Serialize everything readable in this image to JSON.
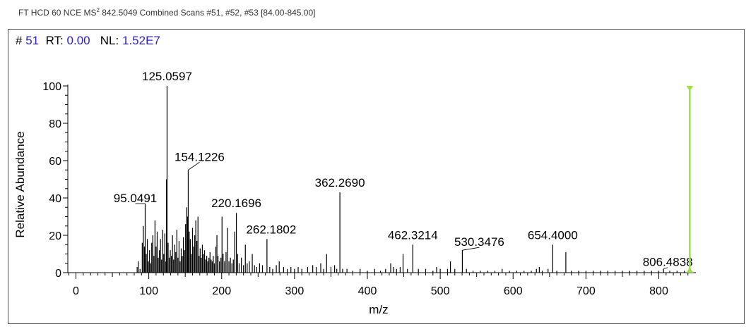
{
  "header": {
    "prefix": "FT HCD 60 NCE MS",
    "superscript": "2",
    "suffix": " 842.5049 Combined Scans #51, #52, #53 [84.00-845.00]"
  },
  "scan": {
    "scan_label": "#",
    "scan_value": "51",
    "rt_label": "RT:",
    "rt_value": "0.00",
    "nl_label": "NL:",
    "nl_value": "1.52E7"
  },
  "colors": {
    "peaks": "#000000",
    "precursor_marker": "#9be33c",
    "value_text": "#2b20d6"
  },
  "chart_data": {
    "type": "bar",
    "xlabel": "m/z",
    "ylabel": "Relative Abundance",
    "xlim": [
      -10,
      850
    ],
    "ylim": [
      0,
      100
    ],
    "x_ticks": [
      0,
      100,
      200,
      300,
      400,
      500,
      600,
      700,
      800
    ],
    "y_ticks": [
      0,
      20,
      40,
      60,
      80,
      100
    ],
    "precursor_marker": {
      "x": 842.5049,
      "y": 100
    },
    "peaks": [
      [
        84,
        3
      ],
      [
        85.5,
        6
      ],
      [
        88,
        2
      ],
      [
        91,
        16
      ],
      [
        92.5,
        25
      ],
      [
        94,
        14
      ],
      [
        95.0491,
        37
      ],
      [
        96.5,
        10
      ],
      [
        98,
        18
      ],
      [
        99.5,
        6
      ],
      [
        101,
        12
      ],
      [
        102.5,
        5
      ],
      [
        104,
        16
      ],
      [
        105.5,
        20
      ],
      [
        107,
        9
      ],
      [
        108.5,
        28
      ],
      [
        110,
        14
      ],
      [
        111.5,
        22
      ],
      [
        113,
        8
      ],
      [
        114.5,
        12
      ],
      [
        116,
        18
      ],
      [
        117.5,
        7
      ],
      [
        119,
        23
      ],
      [
        120.5,
        10
      ],
      [
        122,
        21
      ],
      [
        123.5,
        6
      ],
      [
        124.2,
        50
      ],
      [
        125.0597,
        100
      ],
      [
        126.5,
        16
      ],
      [
        128,
        8
      ],
      [
        129.5,
        12
      ],
      [
        131,
        9
      ],
      [
        132.5,
        20
      ],
      [
        134,
        7
      ],
      [
        135.5,
        15
      ],
      [
        137,
        11
      ],
      [
        138.5,
        23
      ],
      [
        140,
        8
      ],
      [
        141.5,
        17
      ],
      [
        143,
        6
      ],
      [
        144.5,
        13
      ],
      [
        146,
        9
      ],
      [
        147.5,
        19
      ],
      [
        149,
        12
      ],
      [
        150.5,
        26
      ],
      [
        152,
        35
      ],
      [
        153.2,
        30
      ],
      [
        154.1226,
        55
      ],
      [
        155.5,
        22
      ],
      [
        157,
        18
      ],
      [
        158.5,
        10
      ],
      [
        160,
        24
      ],
      [
        161.5,
        14
      ],
      [
        163,
        20
      ],
      [
        164.5,
        28
      ],
      [
        166,
        17
      ],
      [
        167.5,
        30
      ],
      [
        169,
        9
      ],
      [
        170.5,
        13
      ],
      [
        172,
        8
      ],
      [
        173.5,
        15
      ],
      [
        175,
        10
      ],
      [
        176.5,
        12
      ],
      [
        178,
        7
      ],
      [
        179.5,
        9
      ],
      [
        181,
        6
      ],
      [
        182.5,
        8
      ],
      [
        184,
        11
      ],
      [
        185.5,
        7
      ],
      [
        187,
        6
      ],
      [
        188.5,
        9
      ],
      [
        190,
        5
      ],
      [
        192,
        14
      ],
      [
        193.5,
        20
      ],
      [
        195,
        9
      ],
      [
        197,
        6
      ],
      [
        199,
        8
      ],
      [
        200.5,
        30
      ],
      [
        202,
        10
      ],
      [
        204,
        6
      ],
      [
        206,
        11
      ],
      [
        208,
        24
      ],
      [
        210,
        6
      ],
      [
        212,
        8
      ],
      [
        214,
        5
      ],
      [
        216,
        7
      ],
      [
        218,
        22
      ],
      [
        220.1696,
        32
      ],
      [
        222,
        10
      ],
      [
        224,
        5
      ],
      [
        227,
        8
      ],
      [
        230,
        4
      ],
      [
        232.5,
        15
      ],
      [
        235,
        5
      ],
      [
        238,
        6
      ],
      [
        242,
        10
      ],
      [
        245,
        4
      ],
      [
        248,
        3
      ],
      [
        252,
        5
      ],
      [
        256,
        4
      ],
      [
        262.1802,
        18
      ],
      [
        266,
        3
      ],
      [
        270,
        2
      ],
      [
        275,
        4
      ],
      [
        279,
        6
      ],
      [
        285,
        3
      ],
      [
        290,
        2
      ],
      [
        295,
        3
      ],
      [
        300,
        2
      ],
      [
        305,
        3
      ],
      [
        310,
        2
      ],
      [
        318,
        3
      ],
      [
        325,
        4
      ],
      [
        330,
        3
      ],
      [
        336,
        5
      ],
      [
        340,
        2
      ],
      [
        344,
        10
      ],
      [
        350,
        3
      ],
      [
        355,
        4
      ],
      [
        358,
        2
      ],
      [
        362.269,
        43
      ],
      [
        366,
        2
      ],
      [
        372,
        2
      ],
      [
        380,
        1
      ],
      [
        390,
        2
      ],
      [
        400,
        1
      ],
      [
        410,
        2
      ],
      [
        418,
        1
      ],
      [
        425,
        2
      ],
      [
        432,
        5
      ],
      [
        436,
        3
      ],
      [
        440,
        2
      ],
      [
        445,
        3
      ],
      [
        449,
        10
      ],
      [
        455,
        2
      ],
      [
        462.3214,
        15
      ],
      [
        470,
        2
      ],
      [
        480,
        2
      ],
      [
        490,
        1
      ],
      [
        495,
        3
      ],
      [
        500,
        2
      ],
      [
        510,
        2
      ],
      [
        514,
        6
      ],
      [
        520,
        2
      ],
      [
        530.3476,
        12
      ],
      [
        536,
        2
      ],
      [
        545,
        1
      ],
      [
        555,
        1
      ],
      [
        565,
        1
      ],
      [
        575,
        1
      ],
      [
        585,
        2
      ],
      [
        595,
        1
      ],
      [
        605,
        1
      ],
      [
        615,
        1
      ],
      [
        625,
        1
      ],
      [
        632,
        2
      ],
      [
        636,
        3
      ],
      [
        640,
        1
      ],
      [
        648,
        2
      ],
      [
        654.4,
        15
      ],
      [
        660,
        1
      ],
      [
        672.4,
        11
      ],
      [
        680,
        1
      ],
      [
        690,
        1
      ],
      [
        700,
        1
      ],
      [
        710,
        1
      ],
      [
        720,
        1
      ],
      [
        730,
        1
      ],
      [
        740,
        1
      ],
      [
        750,
        1
      ],
      [
        760,
        1
      ],
      [
        770,
        1
      ],
      [
        780,
        1
      ],
      [
        790,
        1
      ],
      [
        800,
        1
      ],
      [
        806.4838,
        2
      ],
      [
        815,
        1
      ],
      [
        825,
        1
      ],
      [
        835,
        1
      ]
    ],
    "peak_labels": [
      {
        "mz": 125.0597,
        "text": "125.0597"
      },
      {
        "mz": 154.1226,
        "text": "154.1226"
      },
      {
        "mz": 95.0491,
        "text": "95.0491"
      },
      {
        "mz": 362.269,
        "text": "362.2690"
      },
      {
        "mz": 220.1696,
        "text": "220.1696"
      },
      {
        "mz": 262.1802,
        "text": "262.1802"
      },
      {
        "mz": 462.3214,
        "text": "462.3214"
      },
      {
        "mz": 530.3476,
        "text": "530.3476"
      },
      {
        "mz": 654.4,
        "text": "654.4000"
      },
      {
        "mz": 806.4838,
        "text": "806.4838"
      }
    ]
  }
}
